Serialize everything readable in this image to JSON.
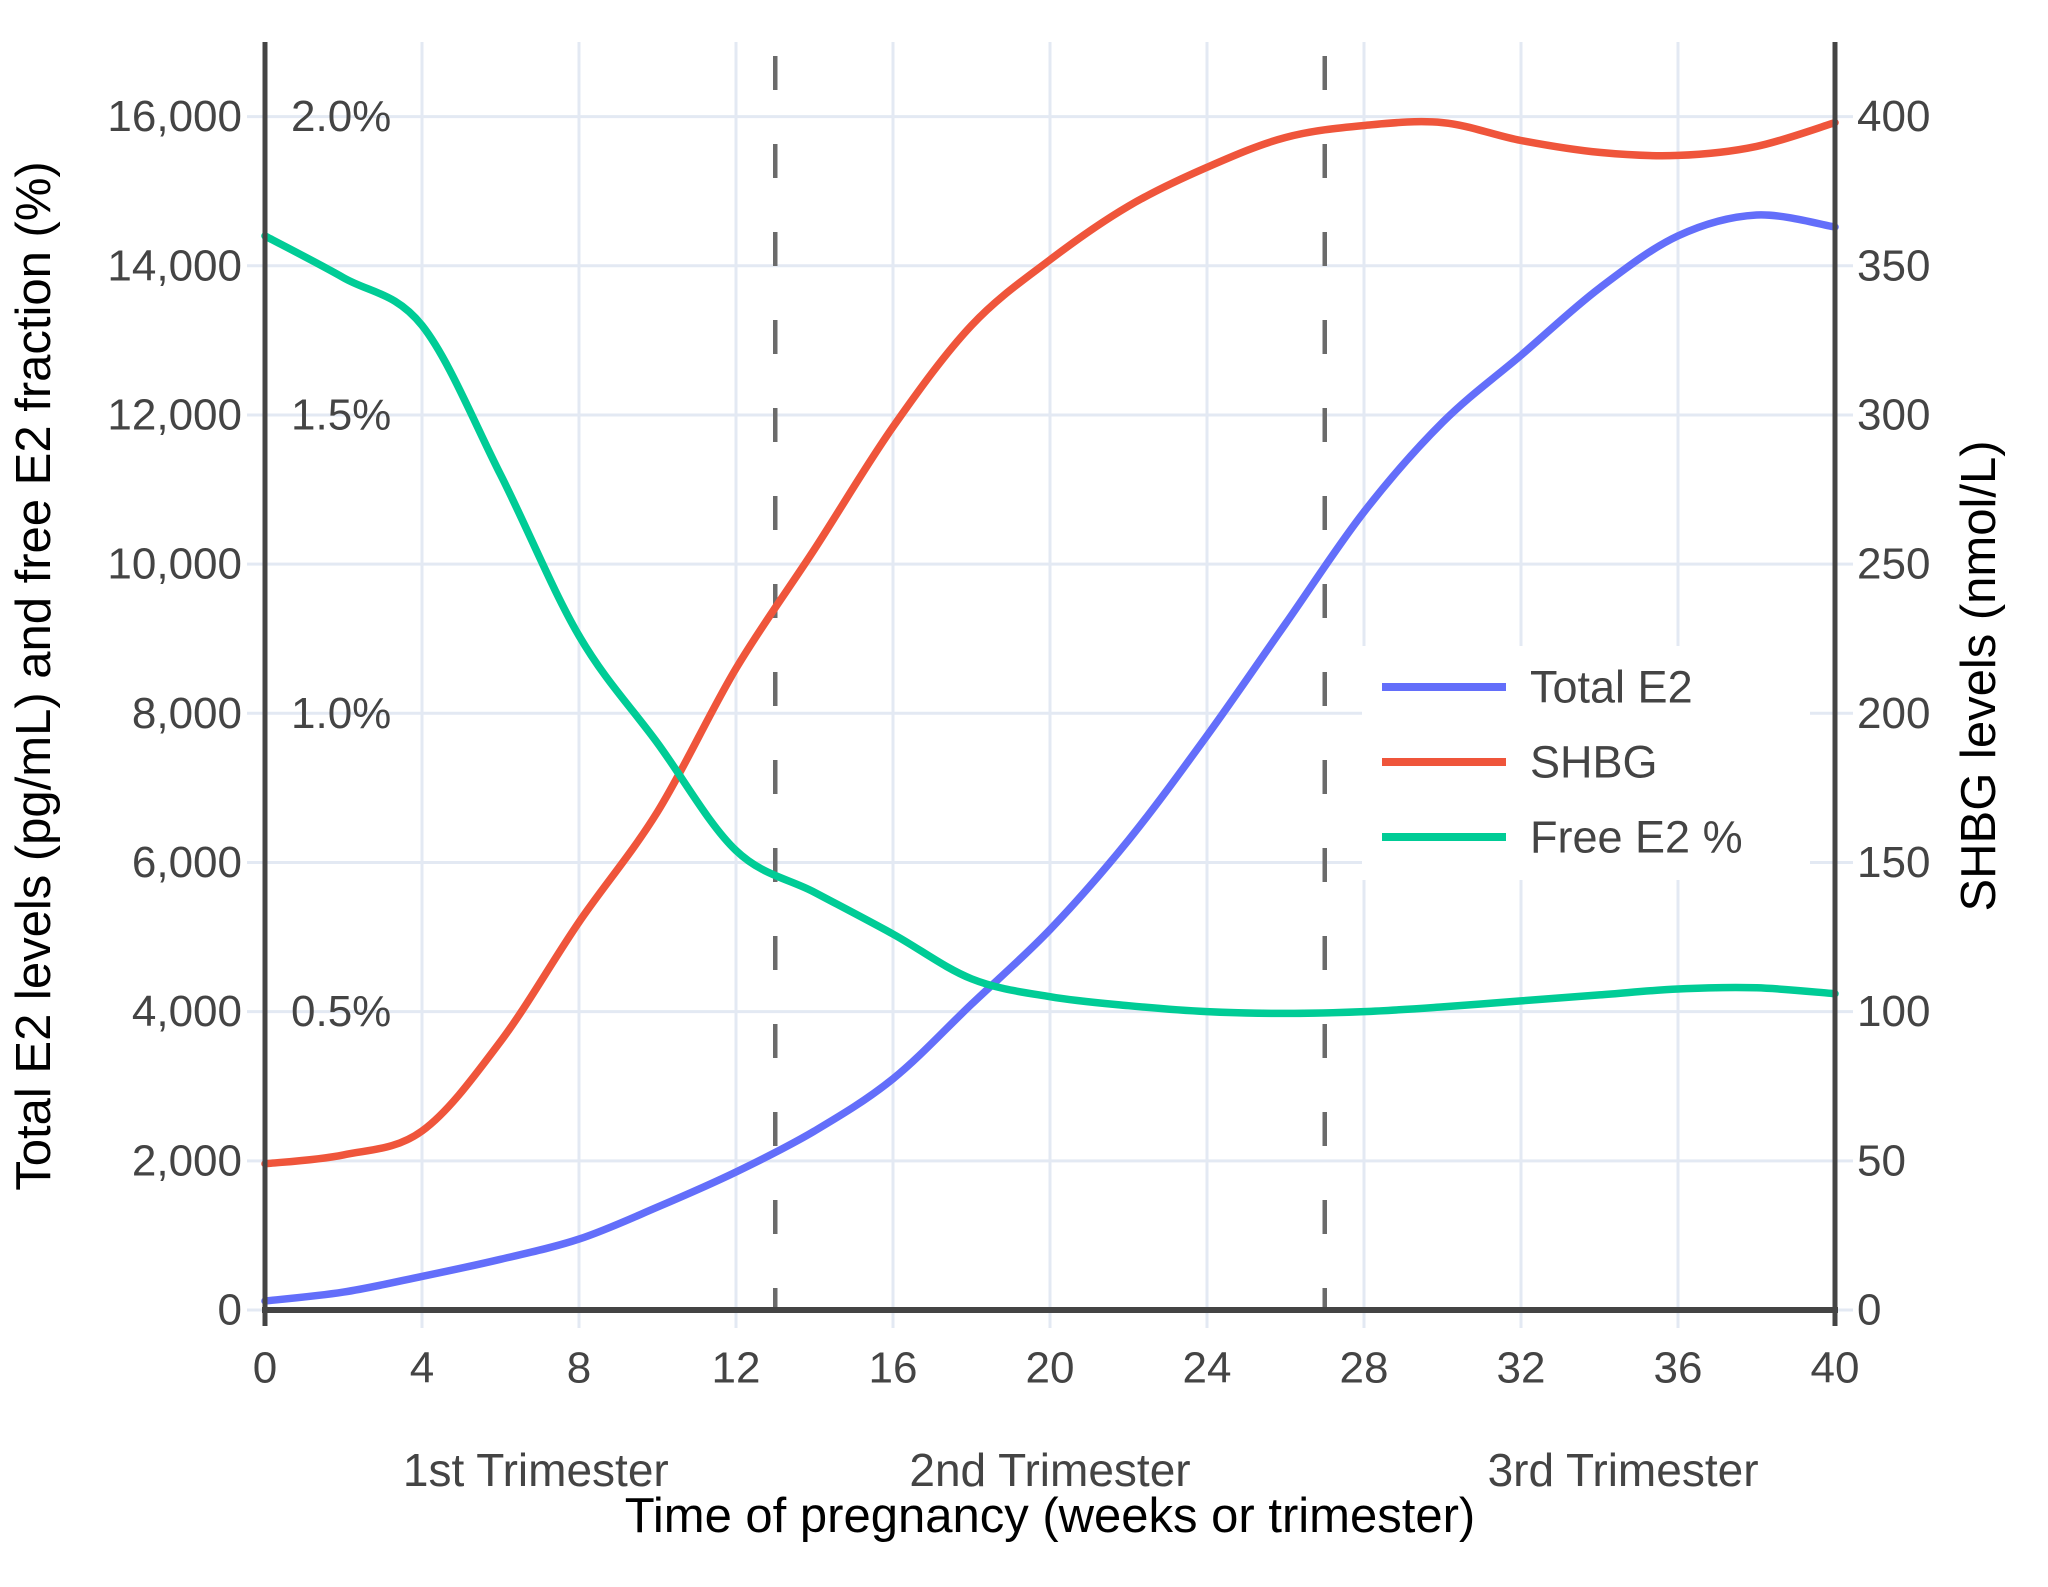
{
  "chart_data": {
    "type": "line",
    "title": "",
    "xlabel": "Time of pregnancy (weeks or trimester)",
    "ylabel_left": "Total E2 levels (pg/mL) and free E2 fraction (%)",
    "ylabel_right": "SHBG levels (nmol/L)",
    "x_range_weeks": [
      0,
      40
    ],
    "left_axis_range": [
      0,
      17000
    ],
    "right_axis_range": [
      0,
      425
    ],
    "pct_to_left_factor": 8000,
    "x_ticks": [
      {
        "label": "0",
        "week": 0
      },
      {
        "label": "4",
        "week": 4
      },
      {
        "label": "8",
        "week": 8
      },
      {
        "label": "12",
        "week": 12
      },
      {
        "label": "16",
        "week": 16
      },
      {
        "label": "20",
        "week": 20
      },
      {
        "label": "24",
        "week": 24
      },
      {
        "label": "28",
        "week": 28
      },
      {
        "label": "32",
        "week": 32
      },
      {
        "label": "36",
        "week": 36
      },
      {
        "label": "40",
        "week": 40
      }
    ],
    "left_ticks": [
      {
        "label": "0",
        "value": 0
      },
      {
        "label": "2,000",
        "value": 2000
      },
      {
        "label": "4,000",
        "value": 4000
      },
      {
        "label": "6,000",
        "value": 6000
      },
      {
        "label": "8,000",
        "value": 8000
      },
      {
        "label": "10,000",
        "value": 10000
      },
      {
        "label": "12,000",
        "value": 12000
      },
      {
        "label": "14,000",
        "value": 14000
      },
      {
        "label": "16,000",
        "value": 16000
      }
    ],
    "pct_labels": [
      {
        "label": "0.5%",
        "value": 0.5
      },
      {
        "label": "1.0%",
        "value": 1.0
      },
      {
        "label": "1.5%",
        "value": 1.5
      },
      {
        "label": "2.0%",
        "value": 2.0
      }
    ],
    "right_ticks": [
      {
        "label": "0",
        "value": 0
      },
      {
        "label": "50",
        "value": 50
      },
      {
        "label": "100",
        "value": 100
      },
      {
        "label": "150",
        "value": 150
      },
      {
        "label": "200",
        "value": 200
      },
      {
        "label": "250",
        "value": 250
      },
      {
        "label": "300",
        "value": 300
      },
      {
        "label": "350",
        "value": 350
      },
      {
        "label": "400",
        "value": 400
      }
    ],
    "trimester_labels": [
      {
        "label": "1st Trimester",
        "center_week": 6.9
      },
      {
        "label": "2nd Trimester",
        "center_week": 20.0
      },
      {
        "label": "3rd Trimester",
        "center_week": 34.6
      }
    ],
    "trimester_divider_weeks": [
      13,
      27
    ],
    "weeks": [
      0,
      2,
      4,
      6,
      8,
      10,
      12,
      14,
      16,
      18,
      20,
      22,
      24,
      26,
      28,
      30,
      32,
      34,
      36,
      38,
      40
    ],
    "series": [
      {
        "name": "Total E2",
        "axis": "left",
        "unit": "pg/mL",
        "color": "#636EFA",
        "values": [
          120,
          240,
          450,
          680,
          950,
          1380,
          1850,
          2400,
          3100,
          4100,
          5100,
          6300,
          7700,
          9200,
          10700,
          11900,
          12800,
          13700,
          14400,
          14680,
          14520
        ]
      },
      {
        "name": "SHBG",
        "axis": "right",
        "unit": "nmol/L",
        "color": "#EF553B",
        "values": [
          49,
          52,
          60,
          90,
          130,
          167,
          215,
          255,
          296,
          330,
          352,
          370,
          383,
          393,
          397,
          398,
          392,
          388,
          387,
          390,
          398
        ]
      },
      {
        "name": "Free E2 %",
        "axis": "percent",
        "unit": "%",
        "color": "#00CC96",
        "values": [
          1.8,
          1.73,
          1.65,
          1.4,
          1.13,
          0.95,
          0.77,
          0.7,
          0.63,
          0.555,
          0.525,
          0.51,
          0.5,
          0.497,
          0.5,
          0.508,
          0.518,
          0.528,
          0.538,
          0.54,
          0.53
        ]
      }
    ],
    "legend_items": [
      "Total E2",
      "SHBG",
      "Free E2 %"
    ],
    "grid_on": true,
    "legend_position": "inside-right",
    "colors": {
      "grid": "#E3E9F3",
      "axis_line": "#444444",
      "text": "#444444",
      "divider": "#6B6B6B",
      "background": "#FFFFFF"
    }
  }
}
